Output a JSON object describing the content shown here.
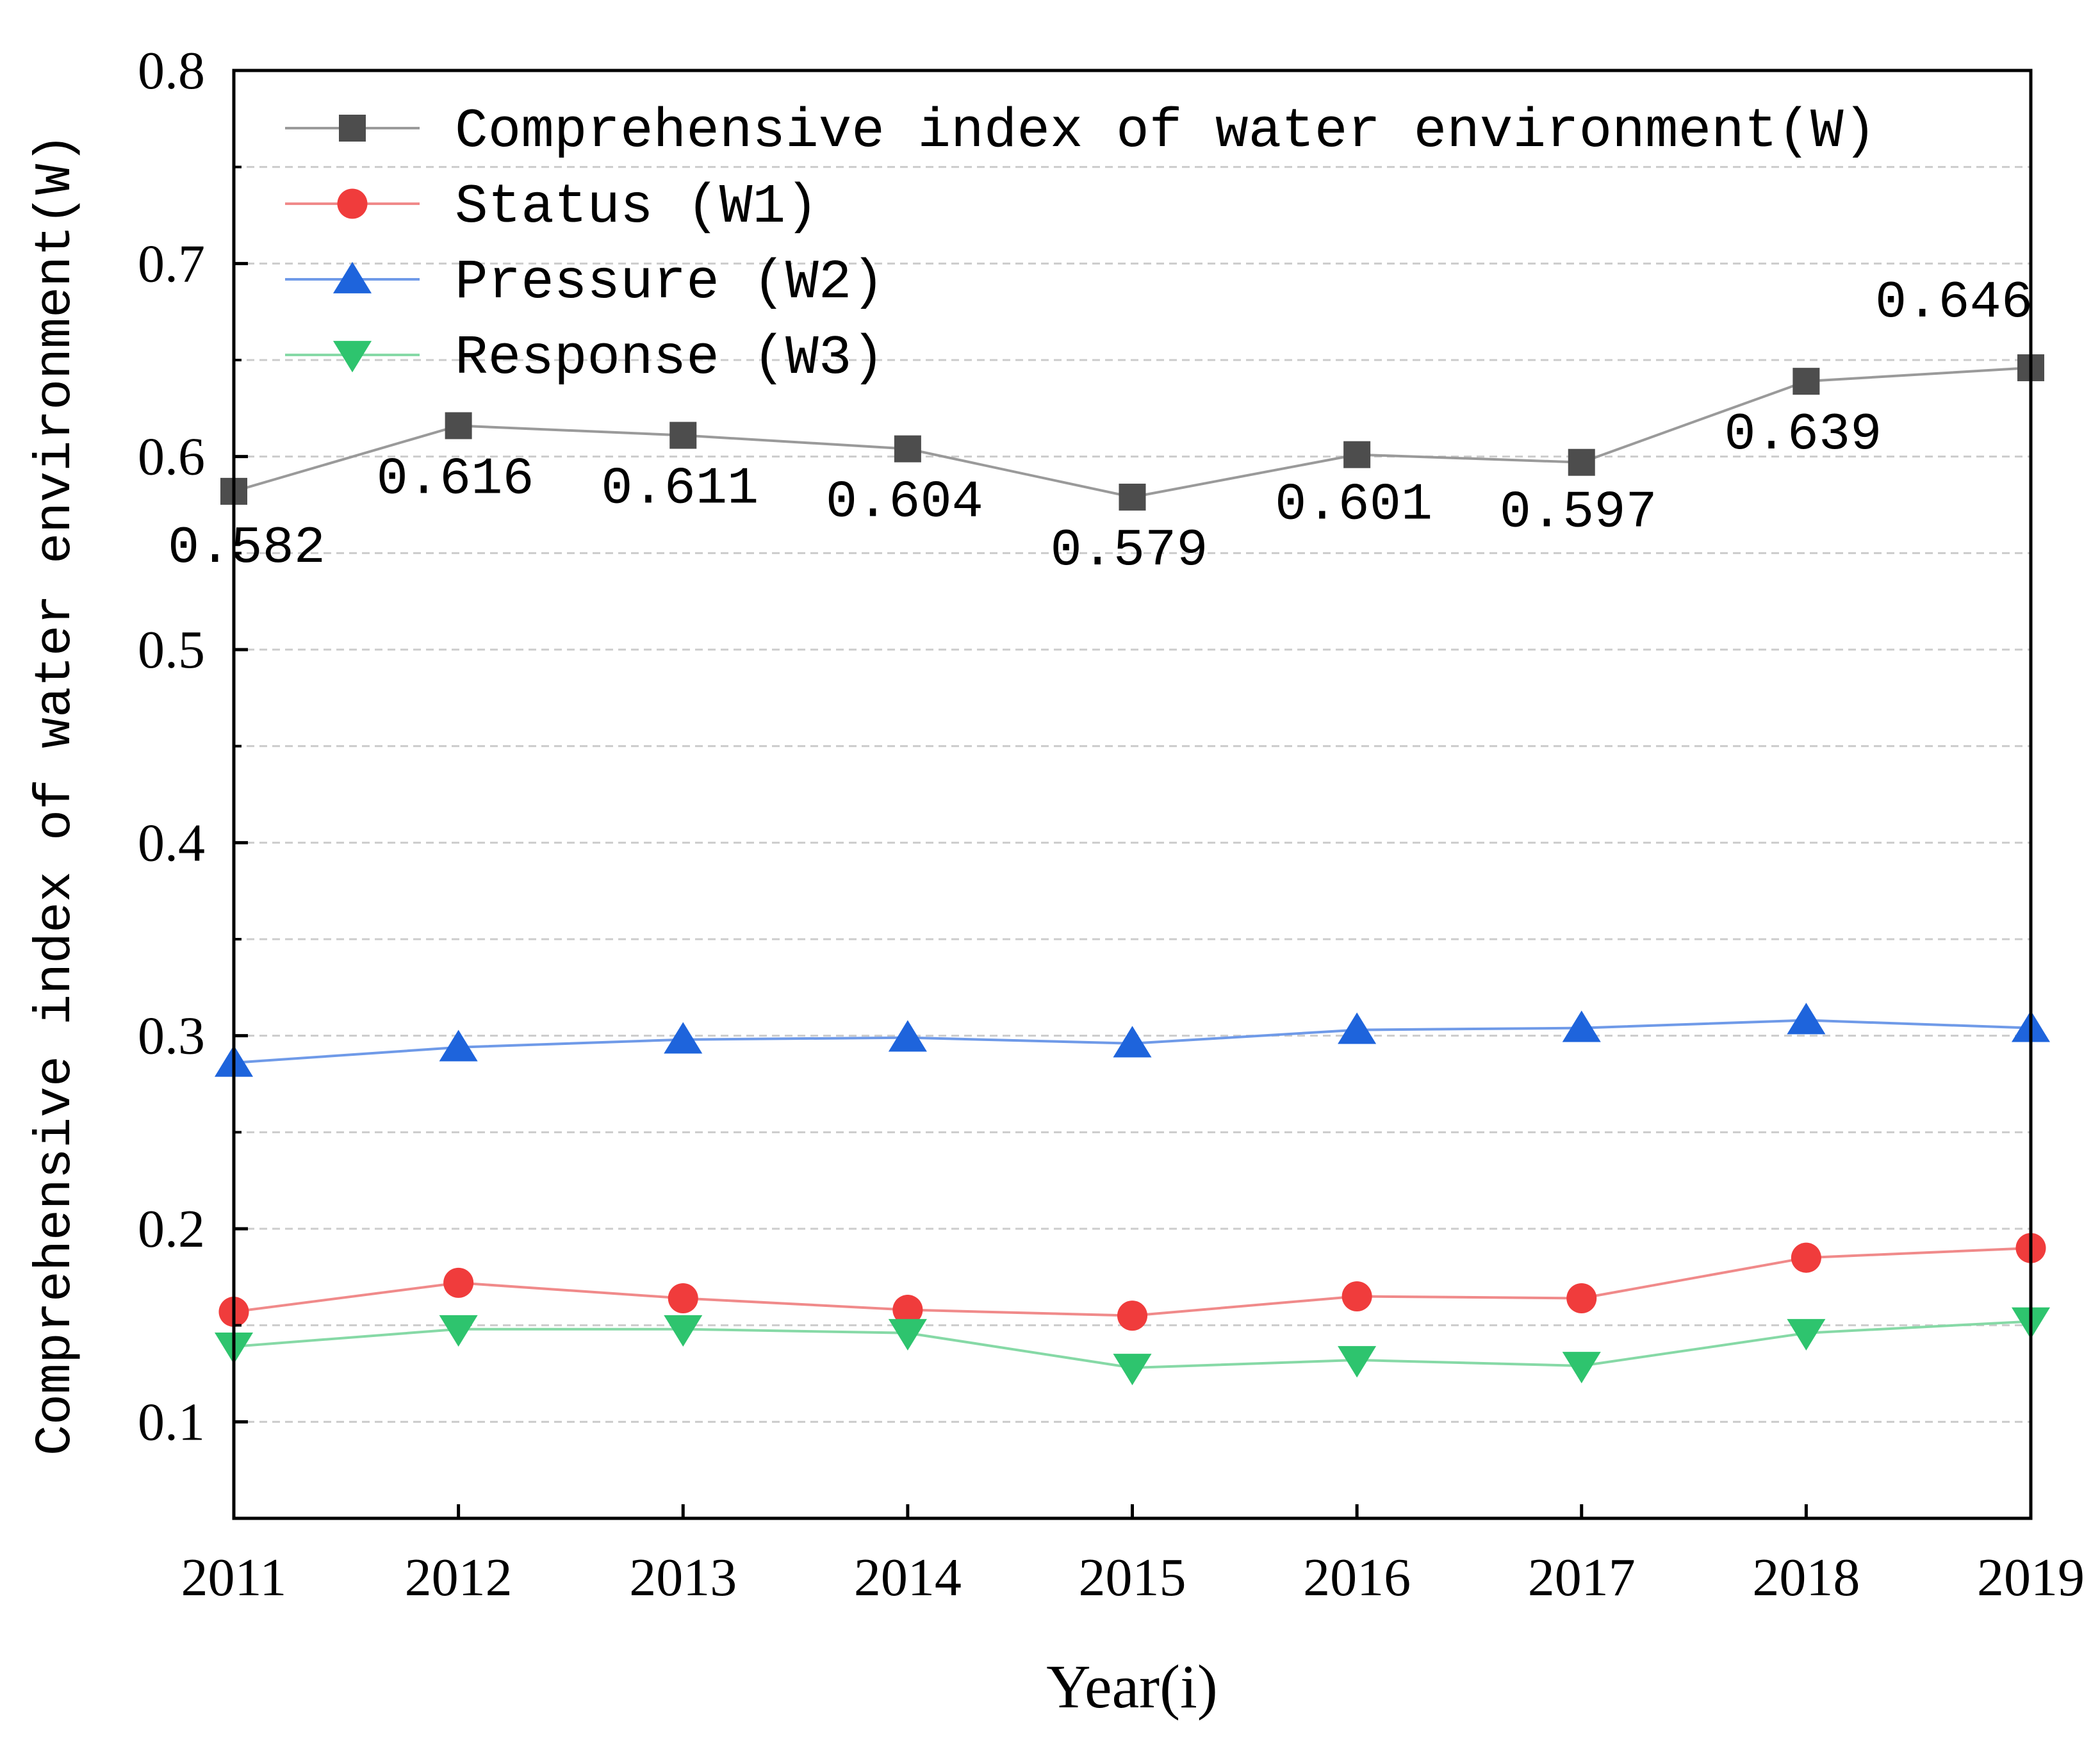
{
  "chart_data": {
    "type": "line",
    "title": "",
    "xlabel": "Year(i)",
    "ylabel": "Comprehensive index of water environment(W)",
    "categories": [
      "2011",
      "2012",
      "2013",
      "2014",
      "2015",
      "2016",
      "2017",
      "2018",
      "2019"
    ],
    "ylim": [
      0.05,
      0.8
    ],
    "yticks": [
      0.1,
      0.2,
      0.3,
      0.4,
      0.5,
      0.6,
      0.7,
      0.8
    ],
    "ytick_labels": [
      "0.1",
      "0.2",
      "0.3",
      "0.4",
      "0.5",
      "0.6",
      "0.7",
      "0.8"
    ],
    "grid": true,
    "legend_position": "top-left",
    "series": [
      {
        "name": "Comprehensive index of water environment(W)",
        "marker": "square",
        "color": "#4d4d4d",
        "line_color": "#9a9a9a",
        "values": [
          0.582,
          0.616,
          0.611,
          0.604,
          0.579,
          0.601,
          0.597,
          0.639,
          0.646
        ],
        "labels": [
          "0.582",
          "0.616",
          "0.611",
          "0.604",
          "0.579",
          "0.601",
          "0.597",
          "0.639",
          "0.646"
        ]
      },
      {
        "name": "Status (W1)",
        "marker": "circle",
        "color": "#f03c3c",
        "line_color": "#f08a8a",
        "values": [
          0.157,
          0.172,
          0.164,
          0.158,
          0.155,
          0.165,
          0.164,
          0.185,
          0.19
        ]
      },
      {
        "name": "Pressure (W2)",
        "marker": "triangle-up",
        "color": "#1e64dc",
        "line_color": "#6f9ae8",
        "values": [
          0.286,
          0.294,
          0.298,
          0.299,
          0.296,
          0.303,
          0.304,
          0.308,
          0.304
        ]
      },
      {
        "name": "Response (W3)",
        "marker": "triangle-down",
        "color": "#2ec46e",
        "line_color": "#86d9a6",
        "values": [
          0.139,
          0.148,
          0.148,
          0.146,
          0.128,
          0.132,
          0.129,
          0.146,
          0.152
        ]
      }
    ]
  }
}
